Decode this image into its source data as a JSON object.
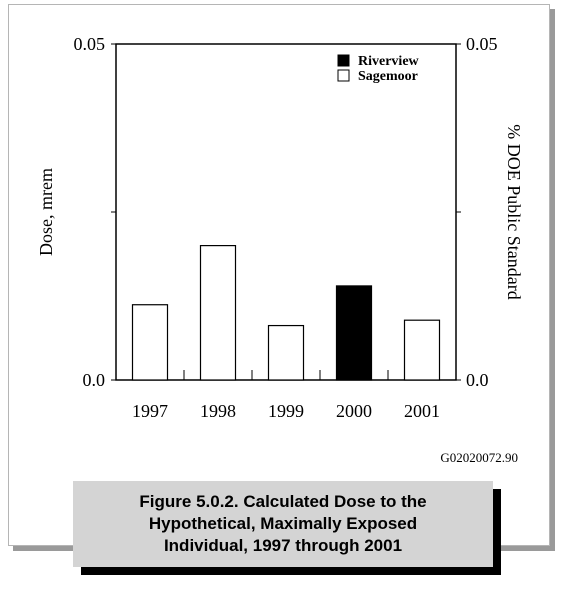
{
  "chart_data": {
    "type": "bar",
    "categories": [
      "1997",
      "1998",
      "1999",
      "2000",
      "2001"
    ],
    "series": [
      {
        "name": "Riverview",
        "color": "#000000",
        "values": [
          null,
          null,
          null,
          0.014,
          null
        ]
      },
      {
        "name": "Sagemoor",
        "color": "#ffffff",
        "values": [
          0.0112,
          0.02,
          0.0081,
          null,
          0.0089
        ]
      }
    ],
    "ylabel": "Dose, mrem",
    "y2label": "% DOE Public Standard",
    "ylim": [
      0,
      0.05
    ],
    "y_tick_labels": [
      "0.0",
      "0.05"
    ],
    "y2_tick_labels": [
      "0.0",
      "0.05"
    ],
    "legend_position": "top-right",
    "grid": false
  },
  "figure_code": "G02020072.90",
  "caption": {
    "lines": [
      "Figure 5.0.2.  Calculated Dose to the",
      "Hypothetical, Maximally Exposed",
      "Individual, 1997 through 2001"
    ]
  }
}
